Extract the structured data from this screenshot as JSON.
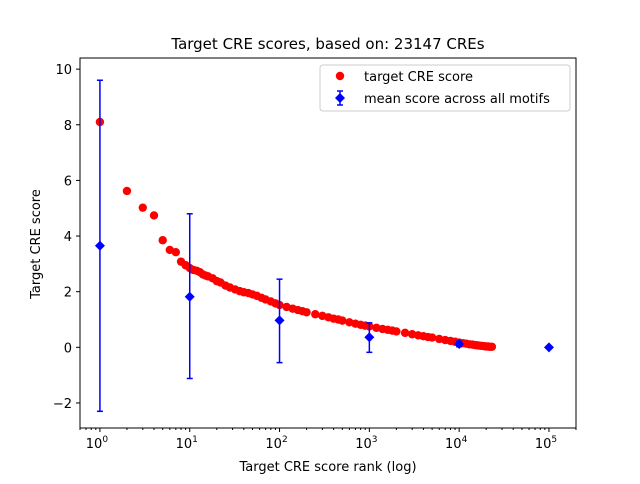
{
  "chart_data": {
    "type": "scatter",
    "title": "Target CRE scores, based on: 23147 CREs",
    "xlabel": "Target CRE score rank (log)",
    "ylabel": "Target CRE score",
    "xscale": "log",
    "xlim": [
      0.6,
      200000
    ],
    "ylim": [
      -2.9,
      10.4
    ],
    "grid": false,
    "legend_position": "top-right",
    "x_ticks": [
      {
        "value": 1,
        "base": "10",
        "exp": "0"
      },
      {
        "value": 10,
        "base": "10",
        "exp": "1"
      },
      {
        "value": 100,
        "base": "10",
        "exp": "2"
      },
      {
        "value": 1000,
        "base": "10",
        "exp": "3"
      },
      {
        "value": 10000,
        "base": "10",
        "exp": "4"
      },
      {
        "value": 100000,
        "base": "10",
        "exp": "5"
      }
    ],
    "y_ticks": [
      {
        "value": -2,
        "label": "−2"
      },
      {
        "value": 0,
        "label": "0"
      },
      {
        "value": 2,
        "label": "2"
      },
      {
        "value": 4,
        "label": "4"
      },
      {
        "value": 6,
        "label": "6"
      },
      {
        "value": 8,
        "label": "8"
      },
      {
        "value": 10,
        "label": "10"
      }
    ],
    "series": [
      {
        "name": "target CRE score",
        "kind": "scatter",
        "marker": "circle",
        "color": "#ff0000",
        "points": [
          [
            1,
            8.1
          ],
          [
            2,
            5.62
          ],
          [
            3,
            5.02
          ],
          [
            4,
            4.74
          ],
          [
            5,
            3.85
          ],
          [
            6,
            3.5
          ],
          [
            7,
            3.42
          ],
          [
            8,
            3.08
          ],
          [
            9,
            2.95
          ],
          [
            10,
            2.85
          ],
          [
            11,
            2.78
          ],
          [
            12,
            2.75
          ],
          [
            13,
            2.7
          ],
          [
            14,
            2.62
          ],
          [
            15,
            2.58
          ],
          [
            16,
            2.55
          ],
          [
            18,
            2.48
          ],
          [
            20,
            2.38
          ],
          [
            22,
            2.33
          ],
          [
            25,
            2.22
          ],
          [
            28,
            2.15
          ],
          [
            32,
            2.08
          ],
          [
            36,
            2.02
          ],
          [
            40,
            1.98
          ],
          [
            45,
            1.95
          ],
          [
            50,
            1.9
          ],
          [
            56,
            1.85
          ],
          [
            63,
            1.78
          ],
          [
            70,
            1.72
          ],
          [
            80,
            1.65
          ],
          [
            90,
            1.58
          ],
          [
            100,
            1.52
          ],
          [
            120,
            1.45
          ],
          [
            140,
            1.39
          ],
          [
            160,
            1.34
          ],
          [
            180,
            1.3
          ],
          [
            200,
            1.26
          ],
          [
            250,
            1.19
          ],
          [
            300,
            1.13
          ],
          [
            350,
            1.08
          ],
          [
            400,
            1.03
          ],
          [
            450,
            1.0
          ],
          [
            500,
            0.96
          ],
          [
            600,
            0.9
          ],
          [
            700,
            0.85
          ],
          [
            800,
            0.81
          ],
          [
            900,
            0.78
          ],
          [
            1000,
            0.75
          ],
          [
            1200,
            0.7
          ],
          [
            1400,
            0.66
          ],
          [
            1600,
            0.63
          ],
          [
            1800,
            0.6
          ],
          [
            2000,
            0.57
          ],
          [
            2500,
            0.52
          ],
          [
            3000,
            0.47
          ],
          [
            3500,
            0.43
          ],
          [
            4000,
            0.4
          ],
          [
            4500,
            0.37
          ],
          [
            5000,
            0.35
          ],
          [
            6000,
            0.3
          ],
          [
            7000,
            0.26
          ],
          [
            8000,
            0.23
          ],
          [
            9000,
            0.2
          ],
          [
            10000,
            0.17
          ],
          [
            11000,
            0.15
          ],
          [
            12000,
            0.13
          ],
          [
            13000,
            0.11
          ],
          [
            14000,
            0.1
          ],
          [
            15000,
            0.08
          ],
          [
            16000,
            0.07
          ],
          [
            17000,
            0.06
          ],
          [
            18000,
            0.05
          ],
          [
            19000,
            0.04
          ],
          [
            20000,
            0.03
          ],
          [
            21000,
            0.03
          ],
          [
            22000,
            0.02
          ],
          [
            23147,
            0.02
          ]
        ]
      },
      {
        "name": "mean score across all motifs",
        "kind": "errorbar",
        "marker": "diamond",
        "color": "#0000ff",
        "points": [
          {
            "x": 1,
            "y": 3.65,
            "low": -2.3,
            "high": 9.6
          },
          {
            "x": 10,
            "y": 1.82,
            "low": -1.12,
            "high": 4.8
          },
          {
            "x": 100,
            "y": 0.97,
            "low": -0.55,
            "high": 2.45
          },
          {
            "x": 1000,
            "y": 0.36,
            "low": -0.18,
            "high": 0.88
          },
          {
            "x": 10000,
            "y": 0.12,
            "low": 0.02,
            "high": 0.22
          },
          {
            "x": 100000,
            "y": 0.0,
            "low": 0.0,
            "high": 0.0
          }
        ]
      }
    ]
  }
}
